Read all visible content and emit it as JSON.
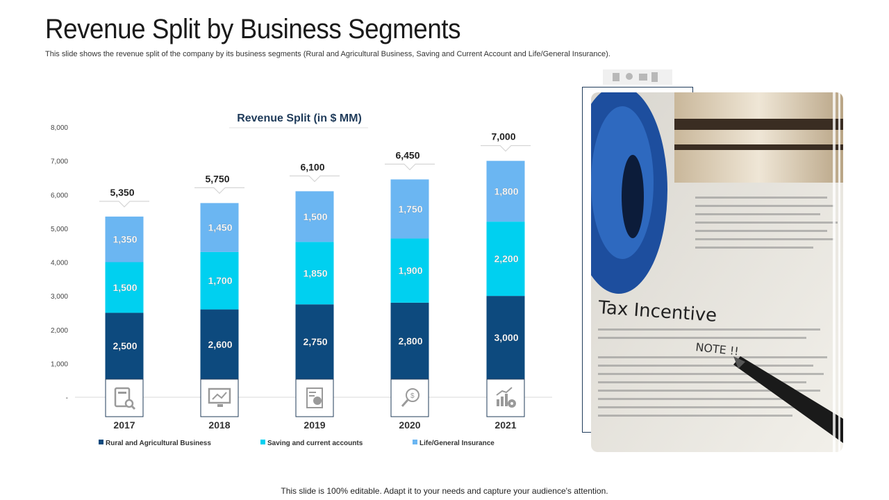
{
  "title": "Revenue Split by Business Segments",
  "subtitle": "This slide shows the revenue split of the company by its business segments (Rural and Agricultural Business, Saving and Current Account and Life/General Insurance).",
  "footer": "This slide is 100% editable. Adapt it to your needs and capture your audience's attention.",
  "photo": {
    "headline": "Tax Incentive",
    "note": "NOTE !!"
  },
  "chart_data": {
    "type": "bar",
    "stacked": true,
    "title": "Revenue Split (in $ MM)",
    "categories": [
      "2017",
      "2018",
      "2019",
      "2020",
      "2021"
    ],
    "series": [
      {
        "name": "Rural and Agricultural Business",
        "color": "#0d4a7e",
        "values": [
          2500,
          2600,
          2750,
          2800,
          3000
        ]
      },
      {
        "name": "Saving and current accounts",
        "color": "#00d0f0",
        "values": [
          1500,
          1700,
          1850,
          1900,
          2200
        ]
      },
      {
        "name": "Life/General Insurance",
        "color": "#6bb6f2",
        "values": [
          1350,
          1450,
          1500,
          1750,
          1800
        ]
      }
    ],
    "totals": [
      5350,
      5750,
      6100,
      6450,
      7000
    ],
    "yticks": [
      "-",
      "1,000",
      "2,000",
      "3,000",
      "4,000",
      "5,000",
      "6,000",
      "7,000",
      "8,000"
    ],
    "ylim": [
      0,
      8000
    ],
    "category_icons": [
      "report-search-icon",
      "monitor-chart-icon",
      "document-dollar-icon",
      "magnifier-dollar-icon",
      "growth-gear-icon"
    ],
    "legend_position": "bottom"
  }
}
